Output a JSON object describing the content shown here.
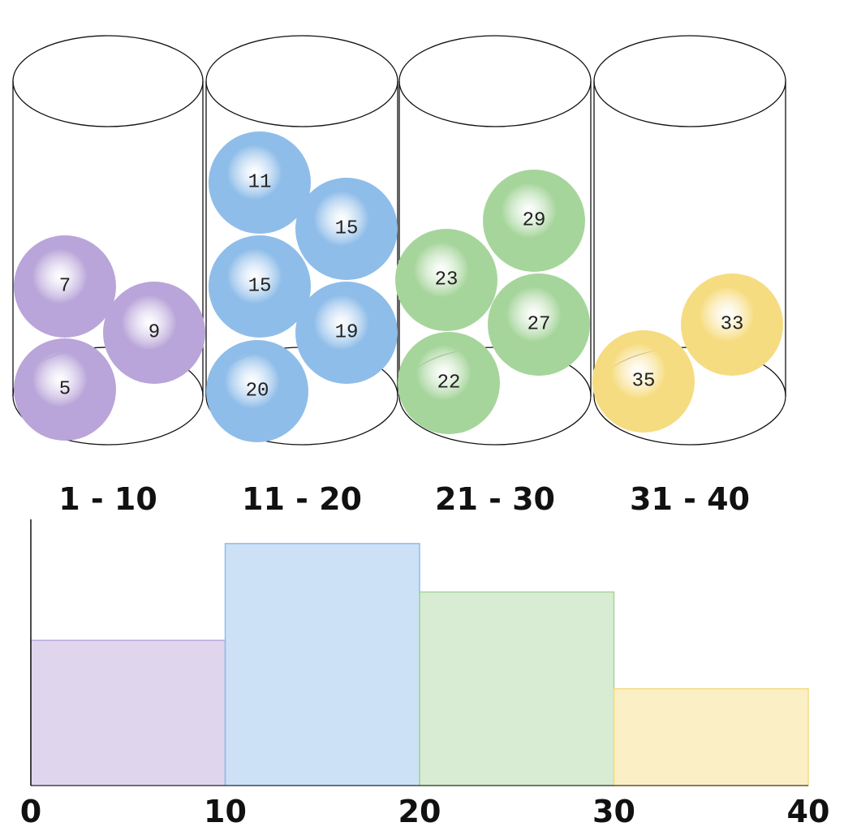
{
  "chart_data": {
    "type": "histogram",
    "bin_labels": [
      "1 - 10",
      "11 - 20",
      "21 - 30",
      "31 - 40"
    ],
    "balls": [
      [
        7,
        9,
        5
      ],
      [
        11,
        15,
        15,
        19,
        20
      ],
      [
        29,
        23,
        27,
        22
      ],
      [
        33,
        35
      ]
    ],
    "colors": [
      "#b9a5d9",
      "#8fbde9",
      "#a6d59b",
      "#f6dc80"
    ],
    "bins": [
      0,
      10,
      20,
      30,
      40
    ],
    "counts": [
      3,
      5,
      4,
      2
    ],
    "xlim": [
      0,
      40
    ],
    "xticks": [
      0,
      10,
      20,
      30,
      40
    ],
    "ylim": [
      0,
      5.5
    ]
  }
}
